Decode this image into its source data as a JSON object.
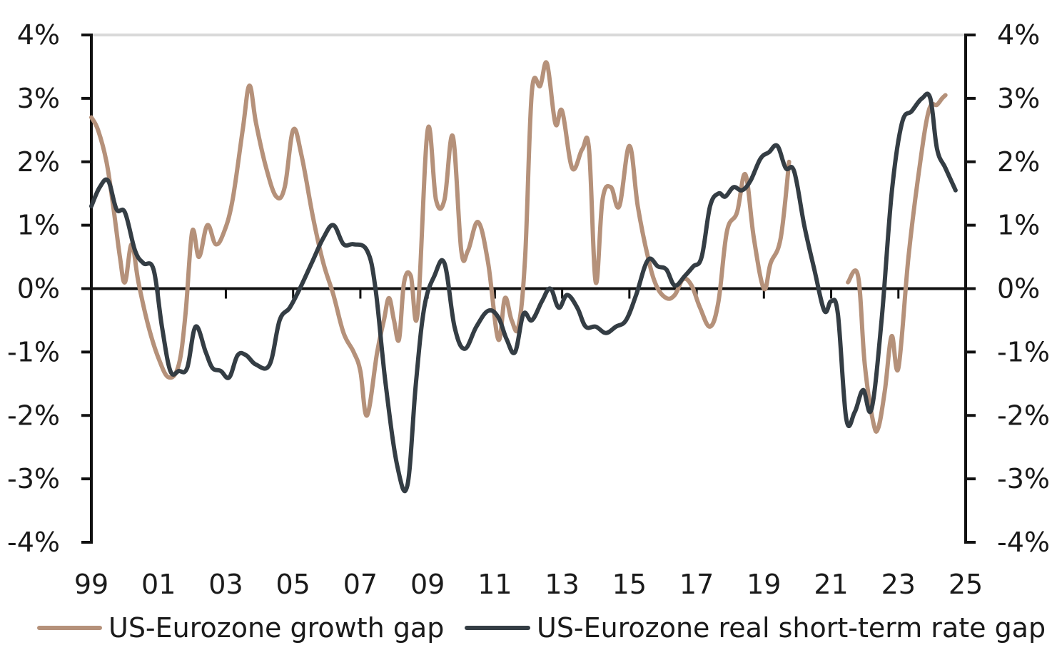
{
  "chart_data": {
    "type": "line",
    "title": "",
    "xlabel": "",
    "ylabel": "",
    "xlim": [
      1999,
      2025
    ],
    "ylim": [
      -4,
      4
    ],
    "y2lim": [
      -4,
      4
    ],
    "x_ticks": [
      "99",
      "01",
      "03",
      "05",
      "07",
      "09",
      "11",
      "13",
      "15",
      "17",
      "19",
      "21",
      "23",
      "25"
    ],
    "y_ticks": [
      "-4%",
      "-3%",
      "-2%",
      "-1%",
      "0%",
      "1%",
      "2%",
      "3%",
      "4%"
    ],
    "y2_ticks": [
      "-4%",
      "-3%",
      "-2%",
      "-1%",
      "0%",
      "1%",
      "2%",
      "3%",
      "4%"
    ],
    "grid": "top border line only",
    "legend_position": "bottom",
    "colors": {
      "growth_gap": "#b5917a",
      "rate_gap": "#343d44",
      "axis": "#111111",
      "top_border": "#d9d9d9"
    },
    "series": [
      {
        "key": "growth_gap",
        "name": "US-Eurozone growth gap",
        "segments": [
          [
            [
              1999.0,
              2.7
            ],
            [
              1999.2,
              2.5
            ],
            [
              1999.45,
              2.0
            ],
            [
              1999.65,
              1.3
            ],
            [
              1999.85,
              0.5
            ],
            [
              2000.0,
              0.1
            ],
            [
              2000.2,
              0.7
            ],
            [
              2000.4,
              0.1
            ],
            [
              2000.7,
              -0.6
            ],
            [
              2001.0,
              -1.1
            ],
            [
              2001.3,
              -1.4
            ],
            [
              2001.6,
              -1.2
            ],
            [
              2001.8,
              -0.4
            ],
            [
              2002.0,
              0.9
            ],
            [
              2002.2,
              0.5
            ],
            [
              2002.45,
              1.0
            ],
            [
              2002.7,
              0.7
            ],
            [
              2002.95,
              0.9
            ],
            [
              2003.2,
              1.4
            ],
            [
              2003.5,
              2.5
            ],
            [
              2003.7,
              3.2
            ],
            [
              2003.9,
              2.6
            ],
            [
              2004.2,
              1.9
            ],
            [
              2004.5,
              1.45
            ],
            [
              2004.75,
              1.6
            ],
            [
              2005.0,
              2.5
            ],
            [
              2005.25,
              2.1
            ],
            [
              2005.6,
              1.1
            ],
            [
              2005.9,
              0.4
            ],
            [
              2006.2,
              -0.1
            ],
            [
              2006.5,
              -0.7
            ],
            [
              2006.8,
              -1.0
            ],
            [
              2007.0,
              -1.3
            ],
            [
              2007.2,
              -2.0
            ],
            [
              2007.5,
              -1.0
            ],
            [
              2007.7,
              -0.5
            ],
            [
              2007.85,
              -0.15
            ],
            [
              2008.0,
              -0.5
            ],
            [
              2008.15,
              -0.8
            ],
            [
              2008.3,
              0.1
            ],
            [
              2008.5,
              0.2
            ],
            [
              2008.7,
              -0.4
            ],
            [
              2009.0,
              2.5
            ],
            [
              2009.25,
              1.4
            ],
            [
              2009.5,
              1.4
            ],
            [
              2009.75,
              2.4
            ],
            [
              2010.0,
              0.6
            ],
            [
              2010.2,
              0.6
            ],
            [
              2010.5,
              1.05
            ],
            [
              2010.8,
              0.4
            ],
            [
              2011.1,
              -0.8
            ],
            [
              2011.3,
              -0.15
            ],
            [
              2011.5,
              -0.5
            ],
            [
              2011.7,
              -0.6
            ],
            [
              2011.9,
              0.5
            ],
            [
              2012.1,
              3.1
            ],
            [
              2012.35,
              3.2
            ],
            [
              2012.55,
              3.55
            ],
            [
              2012.8,
              2.6
            ],
            [
              2013.0,
              2.8
            ],
            [
              2013.3,
              1.9
            ],
            [
              2013.6,
              2.2
            ],
            [
              2013.8,
              2.2
            ],
            [
              2014.0,
              0.1
            ],
            [
              2014.2,
              1.4
            ],
            [
              2014.45,
              1.6
            ],
            [
              2014.7,
              1.3
            ],
            [
              2015.0,
              2.25
            ],
            [
              2015.25,
              1.3
            ],
            [
              2015.55,
              0.5
            ],
            [
              2015.8,
              0.05
            ],
            [
              2016.1,
              -0.15
            ],
            [
              2016.35,
              -0.1
            ],
            [
              2016.6,
              0.15
            ],
            [
              2016.85,
              0.05
            ],
            [
              2017.1,
              -0.3
            ],
            [
              2017.4,
              -0.6
            ],
            [
              2017.65,
              -0.2
            ],
            [
              2017.9,
              0.9
            ],
            [
              2018.2,
              1.2
            ],
            [
              2018.45,
              1.8
            ],
            [
              2018.7,
              0.8
            ],
            [
              2019.0,
              0.0
            ],
            [
              2019.2,
              0.4
            ],
            [
              2019.5,
              0.8
            ],
            [
              2019.75,
              2.0
            ]
          ],
          [
            [
              2021.5,
              0.1
            ],
            [
              2021.8,
              0.2
            ],
            [
              2022.0,
              -1.2
            ],
            [
              2022.25,
              -2.1
            ],
            [
              2022.4,
              -2.2
            ],
            [
              2022.6,
              -1.6
            ],
            [
              2022.8,
              -0.75
            ],
            [
              2023.0,
              -1.25
            ],
            [
              2023.3,
              0.5
            ],
            [
              2023.6,
              1.8
            ],
            [
              2023.9,
              2.8
            ],
            [
              2024.15,
              2.9
            ],
            [
              2024.3,
              3.0
            ],
            [
              2024.4,
              3.05
            ]
          ]
        ]
      },
      {
        "key": "rate_gap",
        "name": "US-Eurozone real short-term rate gap",
        "segments": [
          [
            [
              1999.0,
              1.3
            ],
            [
              1999.25,
              1.6
            ],
            [
              1999.5,
              1.7
            ],
            [
              1999.75,
              1.25
            ],
            [
              2000.0,
              1.2
            ],
            [
              2000.3,
              0.6
            ],
            [
              2000.55,
              0.4
            ],
            [
              2000.85,
              0.3
            ],
            [
              2001.1,
              -0.6
            ],
            [
              2001.35,
              -1.3
            ],
            [
              2001.6,
              -1.3
            ],
            [
              2001.85,
              -1.25
            ],
            [
              2002.1,
              -0.6
            ],
            [
              2002.4,
              -1.0
            ],
            [
              2002.6,
              -1.25
            ],
            [
              2002.85,
              -1.3
            ],
            [
              2003.1,
              -1.4
            ],
            [
              2003.35,
              -1.05
            ],
            [
              2003.6,
              -1.05
            ],
            [
              2003.9,
              -1.2
            ],
            [
              2004.3,
              -1.2
            ],
            [
              2004.6,
              -0.5
            ],
            [
              2004.9,
              -0.3
            ],
            [
              2005.2,
              0.0
            ],
            [
              2005.55,
              0.4
            ],
            [
              2005.9,
              0.8
            ],
            [
              2006.2,
              1.0
            ],
            [
              2006.5,
              0.7
            ],
            [
              2006.8,
              0.7
            ],
            [
              2007.2,
              0.6
            ],
            [
              2007.45,
              0.0
            ],
            [
              2007.75,
              -1.5
            ],
            [
              2008.1,
              -2.8
            ],
            [
              2008.4,
              -3.1
            ],
            [
              2008.65,
              -1.5
            ],
            [
              2008.9,
              -0.3
            ],
            [
              2009.2,
              0.2
            ],
            [
              2009.5,
              0.4
            ],
            [
              2009.8,
              -0.6
            ],
            [
              2010.1,
              -0.95
            ],
            [
              2010.45,
              -0.6
            ],
            [
              2010.8,
              -0.35
            ],
            [
              2011.1,
              -0.45
            ],
            [
              2011.35,
              -0.8
            ],
            [
              2011.6,
              -1.0
            ],
            [
              2011.85,
              -0.4
            ],
            [
              2012.1,
              -0.5
            ],
            [
              2012.4,
              -0.2
            ],
            [
              2012.65,
              0.0
            ],
            [
              2012.9,
              -0.3
            ],
            [
              2013.15,
              -0.1
            ],
            [
              2013.45,
              -0.3
            ],
            [
              2013.7,
              -0.6
            ],
            [
              2014.0,
              -0.6
            ],
            [
              2014.3,
              -0.7
            ],
            [
              2014.6,
              -0.6
            ],
            [
              2014.9,
              -0.5
            ],
            [
              2015.2,
              -0.1
            ],
            [
              2015.55,
              0.45
            ],
            [
              2015.85,
              0.35
            ],
            [
              2016.1,
              0.3
            ],
            [
              2016.35,
              0.05
            ],
            [
              2016.65,
              0.2
            ],
            [
              2016.9,
              0.35
            ],
            [
              2017.15,
              0.5
            ],
            [
              2017.4,
              1.3
            ],
            [
              2017.65,
              1.5
            ],
            [
              2017.85,
              1.45
            ],
            [
              2018.1,
              1.6
            ],
            [
              2018.35,
              1.55
            ],
            [
              2018.6,
              1.7
            ],
            [
              2018.9,
              2.05
            ],
            [
              2019.15,
              2.15
            ],
            [
              2019.4,
              2.25
            ],
            [
              2019.65,
              1.9
            ],
            [
              2019.9,
              1.85
            ],
            [
              2020.2,
              1.0
            ],
            [
              2020.5,
              0.3
            ],
            [
              2020.8,
              -0.35
            ],
            [
              2021.0,
              -0.2
            ],
            [
              2021.2,
              -0.4
            ],
            [
              2021.45,
              -2.05
            ],
            [
              2021.7,
              -1.95
            ],
            [
              2021.95,
              -1.6
            ],
            [
              2022.2,
              -1.9
            ],
            [
              2022.5,
              -0.5
            ],
            [
              2022.8,
              1.5
            ],
            [
              2023.1,
              2.6
            ],
            [
              2023.4,
              2.8
            ],
            [
              2023.7,
              3.0
            ],
            [
              2023.95,
              3.0
            ],
            [
              2024.15,
              2.2
            ],
            [
              2024.4,
              1.9
            ],
            [
              2024.7,
              1.55
            ]
          ]
        ]
      }
    ]
  }
}
